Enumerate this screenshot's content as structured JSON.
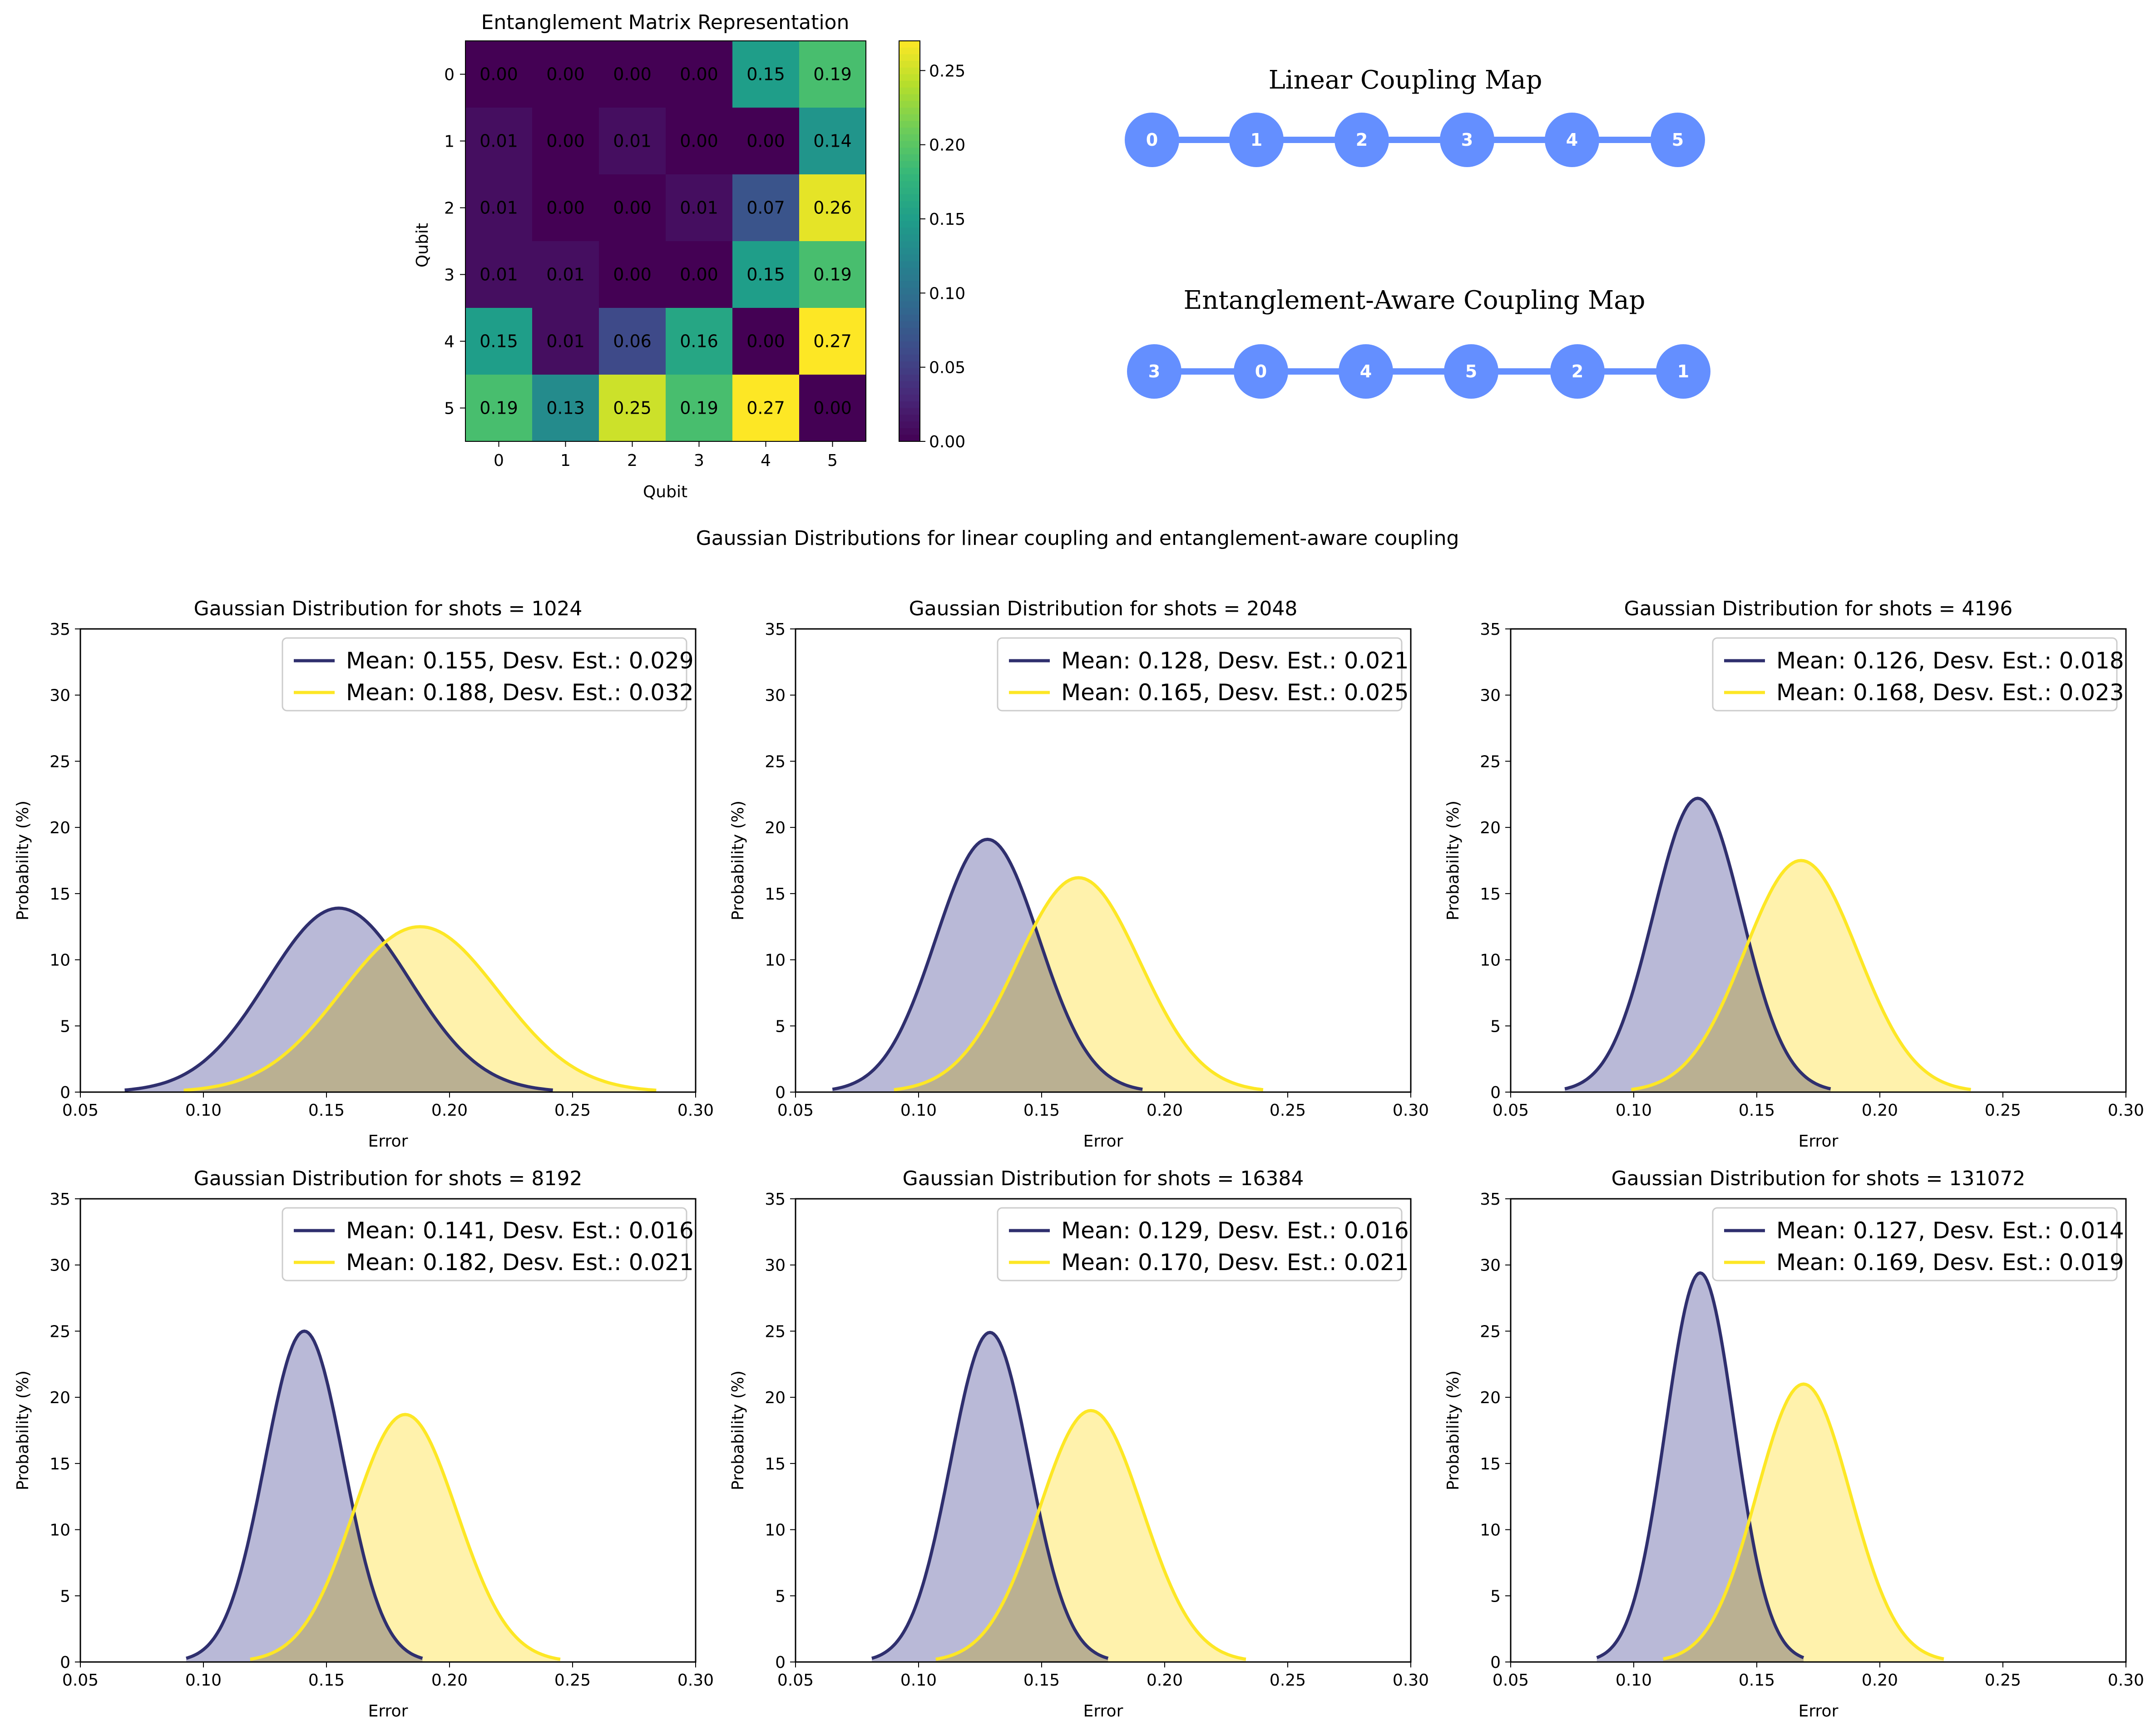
{
  "colors": {
    "linear": "#2f2f6e",
    "linear_fill": "#b8b8d6",
    "aware": "#fde725",
    "aware_fill": "#fff1a8",
    "node": "#648fff"
  },
  "heatmap": {
    "title": "Entanglement Matrix Representation",
    "xlabel": "Qubit",
    "ylabel": "Qubit",
    "labels": [
      "0",
      "1",
      "2",
      "3",
      "4",
      "5"
    ],
    "colorbar_ticks": [
      "0.00",
      "0.05",
      "0.10",
      "0.15",
      "0.20",
      "0.25"
    ]
  },
  "coupling": {
    "linear_title": "Linear Coupling Map",
    "linear_nodes": [
      "0",
      "1",
      "2",
      "3",
      "4",
      "5"
    ],
    "aware_title": "Entanglement-Aware Coupling Map",
    "aware_nodes": [
      "3",
      "0",
      "4",
      "5",
      "2",
      "1"
    ]
  },
  "suptitle": "Gaussian Distributions for linear coupling and entanglement-aware coupling",
  "chart_data": [
    {
      "type": "heatmap",
      "title": "Entanglement Matrix Representation",
      "xlabel": "Qubit",
      "ylabel": "Qubit",
      "x": [
        0,
        1,
        2,
        3,
        4,
        5
      ],
      "y": [
        0,
        1,
        2,
        3,
        4,
        5
      ],
      "values": [
        [
          0.0,
          0.0,
          0.0,
          0.0,
          0.15,
          0.19
        ],
        [
          0.01,
          0.0,
          0.01,
          0.0,
          0.0,
          0.14
        ],
        [
          0.01,
          0.0,
          0.0,
          0.01,
          0.07,
          0.26
        ],
        [
          0.01,
          0.01,
          0.0,
          0.0,
          0.15,
          0.19
        ],
        [
          0.15,
          0.01,
          0.06,
          0.16,
          0.0,
          0.27
        ],
        [
          0.19,
          0.13,
          0.25,
          0.19,
          0.27,
          0.0
        ]
      ],
      "colorbar_range": [
        0,
        0.27
      ],
      "colormap": "viridis"
    },
    {
      "type": "area",
      "title": "Gaussian Distribution for shots = 1024",
      "xlabel": "Error",
      "ylabel": "Probability (%)",
      "xlim": [
        0.05,
        0.3
      ],
      "ylim": [
        0,
        35
      ],
      "xticks": [
        "0.05",
        "0.10",
        "0.15",
        "0.20",
        "0.25",
        "0.30"
      ],
      "yticks": [
        "0",
        "5",
        "10",
        "15",
        "20",
        "25",
        "30",
        "35"
      ],
      "series": [
        {
          "name": "Mean: 0.155, Desv. Est.: 0.029",
          "mean": 0.155,
          "std": 0.029,
          "peak": 13.9
        },
        {
          "name": "Mean: 0.188, Desv. Est.: 0.032",
          "mean": 0.188,
          "std": 0.032,
          "peak": 12.5
        }
      ]
    },
    {
      "type": "area",
      "title": "Gaussian Distribution for shots = 2048",
      "xlabel": "Error",
      "ylabel": "Probability (%)",
      "xlim": [
        0.05,
        0.3
      ],
      "ylim": [
        0,
        35
      ],
      "xticks": [
        "0.05",
        "0.10",
        "0.15",
        "0.20",
        "0.25",
        "0.30"
      ],
      "yticks": [
        "0",
        "5",
        "10",
        "15",
        "20",
        "25",
        "30",
        "35"
      ],
      "series": [
        {
          "name": "Mean: 0.128, Desv. Est.: 0.021",
          "mean": 0.128,
          "std": 0.021,
          "peak": 19.1
        },
        {
          "name": "Mean: 0.165, Desv. Est.: 0.025",
          "mean": 0.165,
          "std": 0.025,
          "peak": 16.2
        }
      ]
    },
    {
      "type": "area",
      "title": "Gaussian Distribution for shots = 4196",
      "xlabel": "Error",
      "ylabel": "Probability (%)",
      "xlim": [
        0.05,
        0.3
      ],
      "ylim": [
        0,
        35
      ],
      "xticks": [
        "0.05",
        "0.10",
        "0.15",
        "0.20",
        "0.25",
        "0.30"
      ],
      "yticks": [
        "0",
        "5",
        "10",
        "15",
        "20",
        "25",
        "30",
        "35"
      ],
      "series": [
        {
          "name": "Mean: 0.126, Desv. Est.: 0.018",
          "mean": 0.126,
          "std": 0.018,
          "peak": 22.2
        },
        {
          "name": "Mean: 0.168, Desv. Est.: 0.023",
          "mean": 0.168,
          "std": 0.023,
          "peak": 17.5
        }
      ]
    },
    {
      "type": "area",
      "title": "Gaussian Distribution for shots = 8192",
      "xlabel": "Error",
      "ylabel": "Probability (%)",
      "xlim": [
        0.05,
        0.3
      ],
      "ylim": [
        0,
        35
      ],
      "xticks": [
        "0.05",
        "0.10",
        "0.15",
        "0.20",
        "0.25",
        "0.30"
      ],
      "yticks": [
        "0",
        "5",
        "10",
        "15",
        "20",
        "25",
        "30",
        "35"
      ],
      "series": [
        {
          "name": "Mean: 0.141, Desv. Est.: 0.016",
          "mean": 0.141,
          "std": 0.016,
          "peak": 25.0
        },
        {
          "name": "Mean: 0.182, Desv. Est.: 0.021",
          "mean": 0.182,
          "std": 0.021,
          "peak": 18.7
        }
      ]
    },
    {
      "type": "area",
      "title": "Gaussian Distribution for shots = 16384",
      "xlabel": "Error",
      "ylabel": "Probability (%)",
      "xlim": [
        0.05,
        0.3
      ],
      "ylim": [
        0,
        35
      ],
      "xticks": [
        "0.05",
        "0.10",
        "0.15",
        "0.20",
        "0.25",
        "0.30"
      ],
      "yticks": [
        "0",
        "5",
        "10",
        "15",
        "20",
        "25",
        "30",
        "35"
      ],
      "series": [
        {
          "name": "Mean: 0.129, Desv. Est.: 0.016",
          "mean": 0.129,
          "std": 0.016,
          "peak": 24.9
        },
        {
          "name": "Mean: 0.170, Desv. Est.: 0.021",
          "mean": 0.17,
          "std": 0.021,
          "peak": 19.0
        }
      ]
    },
    {
      "type": "area",
      "title": "Gaussian Distribution for shots = 131072",
      "xlabel": "Error",
      "ylabel": "Probability (%)",
      "xlim": [
        0.05,
        0.3
      ],
      "ylim": [
        0,
        35
      ],
      "xticks": [
        "0.05",
        "0.10",
        "0.15",
        "0.20",
        "0.25",
        "0.30"
      ],
      "yticks": [
        "0",
        "5",
        "10",
        "15",
        "20",
        "25",
        "30",
        "35"
      ],
      "series": [
        {
          "name": "Mean: 0.127, Desv. Est.: 0.014",
          "mean": 0.127,
          "std": 0.014,
          "peak": 29.4
        },
        {
          "name": "Mean: 0.169, Desv. Est.: 0.019",
          "mean": 0.169,
          "std": 0.019,
          "peak": 21.0
        }
      ]
    }
  ]
}
